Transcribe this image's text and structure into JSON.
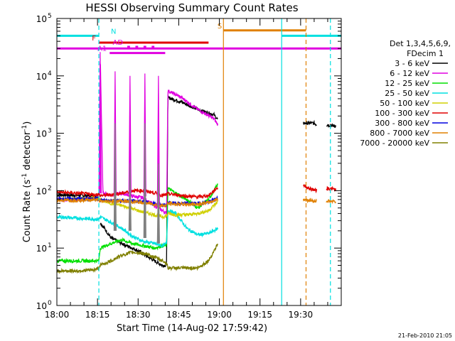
{
  "chart_data": {
    "type": "line",
    "title": "HESSI Observing Summary Count Rates",
    "xlabel": "Start Time (14-Aug-02 17:59:42)",
    "ylabel_main": "Count Rate (s",
    "ylabel_sup1": "-1",
    "ylabel_mid": " detector",
    "ylabel_sup2": "-1",
    "ylabel_end": ")",
    "footer": "21-Feb-2010 21:05",
    "x_unit": "minutes from 18:00",
    "xlim": [
      0,
      105
    ],
    "ylim": [
      1,
      100000
    ],
    "y_scale": "log",
    "x_ticks": [
      {
        "v": 0,
        "label": "18:00"
      },
      {
        "v": 15,
        "label": "18:15"
      },
      {
        "v": 30,
        "label": "18:30"
      },
      {
        "v": 45,
        "label": "18:45"
      },
      {
        "v": 60,
        "label": "19:00"
      },
      {
        "v": 75,
        "label": "19:15"
      },
      {
        "v": 90,
        "label": "19:30"
      }
    ],
    "y_ticks": [
      {
        "exp": 0,
        "label": "10",
        "sup": "0"
      },
      {
        "exp": 1,
        "label": "10",
        "sup": "1"
      },
      {
        "exp": 2,
        "label": "10",
        "sup": "2"
      },
      {
        "exp": 3,
        "label": "10",
        "sup": "3"
      },
      {
        "exp": 4,
        "label": "10",
        "sup": "4"
      },
      {
        "exp": 5,
        "label": "10",
        "sup": "5"
      }
    ],
    "legend": {
      "header1": "Det 1,3,4,5,6,9,",
      "header2": "FDecim 1",
      "placement": "right"
    },
    "series": [
      {
        "name": "3 - 6 keV",
        "color": "#000000",
        "points": [
          [
            0,
            85
          ],
          [
            8,
            83
          ],
          [
            14,
            80
          ],
          [
            15.5,
            70
          ],
          [
            16,
            28
          ],
          [
            20,
            15
          ],
          [
            24,
            12
          ],
          [
            30,
            9
          ],
          [
            36,
            6
          ],
          [
            39,
            5
          ],
          [
            40.5,
            5
          ],
          [
            41,
            4200
          ],
          [
            46,
            3500
          ],
          [
            52,
            2600
          ],
          [
            58,
            2100
          ],
          [
            59.5,
            1700
          ],
          [
            82.5,
            1700
          ],
          [
            86,
            1600
          ],
          [
            91,
            1500
          ],
          [
            95,
            1500
          ],
          [
            96,
            1400
          ],
          [
            99.5,
            1400
          ],
          [
            100,
            1400
          ],
          [
            102,
            1350
          ],
          [
            103,
            1350
          ]
        ],
        "segments": [
          [
            0,
            15.5
          ],
          [
            16,
            59.5
          ],
          [
            91,
            96
          ],
          [
            99.5,
            103
          ]
        ]
      },
      {
        "name": "6 - 12 keV",
        "color": "#e000e0",
        "points": [
          [
            0,
            70
          ],
          [
            8,
            70
          ],
          [
            14,
            72
          ],
          [
            15.5,
            70
          ],
          [
            16,
            26000
          ],
          [
            17,
            90
          ],
          [
            20,
            85
          ],
          [
            24,
            90
          ],
          [
            28,
            80
          ],
          [
            32,
            75
          ],
          [
            36,
            55
          ],
          [
            39,
            45
          ],
          [
            40.5,
            40
          ],
          [
            41,
            5500
          ],
          [
            46,
            4200
          ],
          [
            52,
            2600
          ],
          [
            58,
            1800
          ],
          [
            59.5,
            1400
          ]
        ],
        "segments": [
          [
            0,
            59.5
          ]
        ]
      },
      {
        "name": "12 - 25 keV",
        "color": "#00e000",
        "points": [
          [
            0,
            6
          ],
          [
            8,
            6
          ],
          [
            14,
            6
          ],
          [
            15.5,
            6
          ],
          [
            16,
            10
          ],
          [
            20,
            12
          ],
          [
            24,
            14
          ],
          [
            28,
            12
          ],
          [
            32,
            11
          ],
          [
            36,
            10
          ],
          [
            39,
            11
          ],
          [
            40.5,
            11
          ],
          [
            41,
            110
          ],
          [
            44,
            90
          ],
          [
            48,
            70
          ],
          [
            52,
            50
          ],
          [
            56,
            70
          ],
          [
            59.5,
            130
          ]
        ],
        "segments": [
          [
            0,
            59.5
          ]
        ]
      },
      {
        "name": "25 - 50 keV",
        "color": "#00e0e0",
        "points": [
          [
            0,
            35
          ],
          [
            8,
            33
          ],
          [
            14,
            32
          ],
          [
            15.5,
            32
          ],
          [
            16,
            35
          ],
          [
            20,
            28
          ],
          [
            24,
            22
          ],
          [
            28,
            16
          ],
          [
            32,
            13
          ],
          [
            36,
            12
          ],
          [
            39,
            11
          ],
          [
            40.5,
            12
          ],
          [
            41,
            45
          ],
          [
            44,
            40
          ],
          [
            48,
            22
          ],
          [
            52,
            17
          ],
          [
            56,
            18
          ],
          [
            59.5,
            22
          ]
        ],
        "segments": [
          [
            0,
            59.5
          ]
        ]
      },
      {
        "name": "50 - 100 keV",
        "color": "#d0d000",
        "points": [
          [
            0,
            70
          ],
          [
            8,
            72
          ],
          [
            14,
            74
          ],
          [
            15.5,
            74
          ],
          [
            16,
            70
          ],
          [
            20,
            60
          ],
          [
            24,
            55
          ],
          [
            28,
            48
          ],
          [
            32,
            42
          ],
          [
            36,
            38
          ],
          [
            39,
            35
          ],
          [
            40.5,
            36
          ],
          [
            41,
            40
          ],
          [
            44,
            38
          ],
          [
            48,
            38
          ],
          [
            52,
            40
          ],
          [
            56,
            45
          ],
          [
            59.5,
            65
          ]
        ],
        "segments": [
          [
            0,
            59.5
          ]
        ]
      },
      {
        "name": "100 - 300 keV",
        "color": "#e00000",
        "points": [
          [
            0,
            95
          ],
          [
            8,
            90
          ],
          [
            14,
            85
          ],
          [
            15.5,
            88
          ],
          [
            16,
            82
          ],
          [
            20,
            85
          ],
          [
            24,
            90
          ],
          [
            28,
            100
          ],
          [
            32,
            100
          ],
          [
            36,
            92
          ],
          [
            39,
            82
          ],
          [
            40.5,
            85
          ],
          [
            41,
            88
          ],
          [
            44,
            85
          ],
          [
            48,
            80
          ],
          [
            52,
            78
          ],
          [
            56,
            82
          ],
          [
            59.5,
            115
          ],
          [
            91,
            125
          ],
          [
            93,
            110
          ],
          [
            96,
            100
          ],
          [
            99.5,
            110
          ],
          [
            100,
            110
          ],
          [
            103,
            105
          ]
        ],
        "segments": [
          [
            0,
            59.5
          ],
          [
            91,
            96
          ],
          [
            99.5,
            103
          ]
        ]
      },
      {
        "name": "300 - 800 keV",
        "color": "#0000e0",
        "points": [
          [
            0,
            72
          ],
          [
            8,
            72
          ],
          [
            14,
            72
          ],
          [
            15.5,
            72
          ],
          [
            16,
            68
          ],
          [
            20,
            68
          ],
          [
            24,
            67
          ],
          [
            28,
            66
          ],
          [
            32,
            64
          ],
          [
            36,
            60
          ],
          [
            39,
            56
          ],
          [
            40.5,
            55
          ],
          [
            41,
            62
          ],
          [
            44,
            60
          ],
          [
            48,
            60
          ],
          [
            52,
            60
          ],
          [
            56,
            63
          ],
          [
            59.5,
            75
          ]
        ],
        "segments": [
          [
            0,
            59.5
          ]
        ]
      },
      {
        "name": "800 - 7000 keV",
        "color": "#e08000",
        "points": [
          [
            0,
            68
          ],
          [
            8,
            68
          ],
          [
            14,
            70
          ],
          [
            15.5,
            70
          ],
          [
            16,
            65
          ],
          [
            20,
            66
          ],
          [
            24,
            66
          ],
          [
            28,
            64
          ],
          [
            32,
            62
          ],
          [
            36,
            58
          ],
          [
            39,
            55
          ],
          [
            40.5,
            55
          ],
          [
            41,
            60
          ],
          [
            44,
            58
          ],
          [
            48,
            58
          ],
          [
            52,
            58
          ],
          [
            56,
            62
          ],
          [
            59.5,
            72
          ],
          [
            91,
            70
          ],
          [
            93,
            68
          ],
          [
            96,
            66
          ],
          [
            99.5,
            66
          ],
          [
            100,
            66
          ],
          [
            103,
            64
          ]
        ],
        "segments": [
          [
            0,
            59.5
          ],
          [
            91,
            96
          ],
          [
            99.5,
            103
          ]
        ]
      },
      {
        "name": "7000 - 20000 keV",
        "color": "#808000",
        "points": [
          [
            0,
            4
          ],
          [
            8,
            4
          ],
          [
            14,
            4.2
          ],
          [
            15.5,
            4.5
          ],
          [
            16,
            5
          ],
          [
            20,
            6
          ],
          [
            24,
            7.5
          ],
          [
            28,
            8.5
          ],
          [
            32,
            8
          ],
          [
            36,
            7
          ],
          [
            39,
            6
          ],
          [
            40.5,
            5.5
          ],
          [
            41,
            4.5
          ],
          [
            44,
            4.5
          ],
          [
            48,
            4.5
          ],
          [
            52,
            4.5
          ],
          [
            56,
            6
          ],
          [
            59.5,
            12
          ]
        ],
        "segments": [
          [
            0,
            59.5
          ]
        ]
      }
    ],
    "spikes": [
      {
        "x": 16.0,
        "color": "#e000e0",
        "peak": 26000,
        "base": 90
      },
      {
        "x": 21.5,
        "color": "#e000e0",
        "peak": 12000,
        "base": 90
      },
      {
        "x": 27.0,
        "color": "#e000e0",
        "peak": 10000,
        "base": 90
      },
      {
        "x": 32.5,
        "color": "#e000e0",
        "peak": 11000,
        "base": 80
      },
      {
        "x": 37.5,
        "color": "#e000e0",
        "peak": 10000,
        "base": 55
      },
      {
        "x": 21.5,
        "color": "#808080",
        "peak": 1500,
        "base": 20
      },
      {
        "x": 27.0,
        "color": "#808080",
        "peak": 300,
        "base": 20
      },
      {
        "x": 32.5,
        "color": "#808080",
        "peak": 1500,
        "base": 15
      },
      {
        "x": 37.5,
        "color": "#808080",
        "peak": 300,
        "base": 12
      }
    ],
    "flag_bars": [
      {
        "label": "N",
        "color": "#00e0e0",
        "y": 50000,
        "segments": [
          [
            0,
            15.5
          ],
          [
            83,
            105
          ]
        ]
      },
      {
        "label": "S",
        "color": "#e08000",
        "y": 62000,
        "segments": [
          [
            61.5,
            92
          ]
        ]
      },
      {
        "label": "F",
        "color": "#e00000",
        "y": 38000,
        "segments": [
          [
            15.5,
            56
          ]
        ]
      },
      {
        "label": "AD",
        "color": "#e000e0",
        "y": 32000,
        "segments": [
          [
            26,
            27
          ],
          [
            29,
            30
          ],
          [
            32,
            33
          ],
          [
            35,
            36
          ]
        ]
      },
      {
        "label": "A1",
        "color": "#e000e0",
        "y": 25000,
        "segments": [
          [
            19.5,
            40
          ]
        ]
      },
      {
        "label": "",
        "color": "#e000e0",
        "y": 30000,
        "segments": [
          [
            0,
            105
          ]
        ]
      }
    ],
    "vlines": [
      {
        "x": 15.5,
        "color": "#00e0e0",
        "style": "dashed"
      },
      {
        "x": 61.5,
        "color": "#e08000",
        "style": "solid"
      },
      {
        "x": 83,
        "color": "#00e0e0",
        "style": "solid"
      },
      {
        "x": 92,
        "color": "#e08000",
        "style": "dashed"
      },
      {
        "x": 101,
        "color": "#00e0e0",
        "style": "dashed"
      }
    ],
    "grid": false
  }
}
